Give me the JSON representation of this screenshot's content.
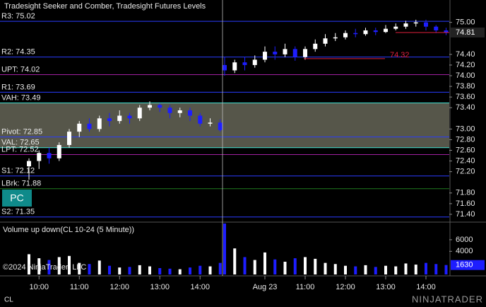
{
  "chart_data": {
    "type": "candlestick",
    "title": "Tradesight Seeker and Comber, Tradesight Futures Levels",
    "instrument": "CL",
    "copyright": "©2024 NinjaTrader, LLC",
    "logo": "NINJATRADER",
    "button": "PC",
    "up_color": "#ffffff",
    "down_color": "#1e1eff",
    "ylim": [
      71.28,
      75.42
    ],
    "yticks": [
      {
        "value": 75.0,
        "label": "75.00"
      },
      {
        "value": 74.4,
        "label": "74.40"
      },
      {
        "value": 74.2,
        "label": "74.20"
      },
      {
        "value": 74.0,
        "label": "74.00"
      },
      {
        "value": 73.8,
        "label": "73.80"
      },
      {
        "value": 73.6,
        "label": "73.60"
      },
      {
        "value": 73.4,
        "label": "73.40"
      },
      {
        "value": 73.0,
        "label": "73.00"
      },
      {
        "value": 72.8,
        "label": "72.80"
      },
      {
        "value": 72.6,
        "label": "72.60"
      },
      {
        "value": 72.4,
        "label": "72.40"
      },
      {
        "value": 72.2,
        "label": "72.20"
      },
      {
        "value": 71.8,
        "label": "71.80"
      },
      {
        "value": 71.6,
        "label": "71.60"
      },
      {
        "value": 71.4,
        "label": "71.40"
      }
    ],
    "xticks": [
      {
        "value": 1,
        "label": "10:00"
      },
      {
        "value": 5,
        "label": "11:00"
      },
      {
        "value": 9,
        "label": "12:00"
      },
      {
        "value": 13,
        "label": "13:00"
      },
      {
        "value": 17,
        "label": "14:00"
      },
      {
        "value": 24,
        "label": "Aug 23"
      },
      {
        "value": 28,
        "label": "11:00"
      },
      {
        "value": 32,
        "label": "12:00"
      },
      {
        "value": 36,
        "label": "13:00"
      },
      {
        "value": 40,
        "label": "14:00"
      }
    ],
    "open": [
      72.3,
      72.4,
      72.55,
      72.45,
      72.7,
      72.95,
      73.1,
      73.0,
      73.2,
      73.15,
      73.25,
      73.2,
      73.4,
      73.45,
      73.4,
      73.3,
      73.35,
      73.25,
      73.1,
      73.12,
      74.2,
      74.1,
      74.25,
      74.2,
      74.3,
      74.45,
      74.4,
      74.5,
      74.35,
      74.5,
      74.6,
      74.7,
      74.72,
      74.8,
      74.78,
      74.85,
      74.82,
      74.88,
      74.92,
      74.98,
      75.0,
      74.92,
      74.85
    ],
    "high": [
      72.45,
      72.6,
      72.65,
      72.75,
      73.0,
      73.15,
      73.2,
      73.25,
      73.3,
      73.35,
      73.3,
      73.45,
      73.52,
      73.48,
      73.45,
      73.4,
      73.4,
      73.3,
      73.2,
      73.18,
      74.35,
      74.3,
      74.35,
      74.38,
      74.55,
      74.55,
      74.6,
      74.55,
      74.55,
      74.68,
      74.78,
      74.8,
      74.85,
      74.88,
      74.9,
      74.9,
      74.95,
      74.98,
      75.03,
      75.05,
      75.05,
      74.95,
      74.9
    ],
    "low": [
      72.05,
      72.25,
      72.35,
      72.4,
      72.65,
      72.85,
      72.95,
      72.95,
      73.05,
      73.1,
      73.1,
      73.15,
      73.35,
      73.32,
      73.2,
      73.22,
      73.15,
      73.05,
      73.05,
      72.95,
      74.0,
      74.05,
      74.1,
      74.15,
      74.25,
      74.3,
      74.35,
      74.28,
      74.3,
      74.45,
      74.55,
      74.65,
      74.68,
      74.72,
      74.75,
      74.76,
      74.8,
      74.85,
      74.88,
      74.92,
      74.85,
      74.8,
      74.76
    ],
    "close": [
      72.4,
      72.55,
      72.45,
      72.7,
      72.95,
      73.1,
      73.0,
      73.2,
      73.15,
      73.25,
      73.2,
      73.4,
      73.45,
      73.4,
      73.3,
      73.35,
      73.25,
      73.1,
      73.12,
      72.98,
      74.1,
      74.25,
      74.2,
      74.3,
      74.45,
      74.4,
      74.5,
      74.35,
      74.5,
      74.6,
      74.7,
      74.72,
      74.8,
      74.78,
      74.85,
      74.82,
      74.88,
      74.92,
      74.98,
      75.0,
      74.92,
      74.85,
      74.81
    ],
    "last_price": 74.81,
    "levels": [
      {
        "label": "R3: 75.02",
        "value": 75.02,
        "color": "#2a3cff"
      },
      {
        "label": "R2: 74.35",
        "value": 74.35,
        "color": "#2a3cff"
      },
      {
        "label": "UPT: 74.02",
        "value": 74.02,
        "color": "#a020a0"
      },
      {
        "label": "R1: 73.69",
        "value": 73.69,
        "color": "#2a3cff"
      },
      {
        "label": "VAH: 73.49",
        "value": 73.49,
        "color": "#40e0d0"
      },
      {
        "label": "Pivot: 72.85",
        "value": 72.85,
        "color": "#2a3cff"
      },
      {
        "label": "VAL: 72.65",
        "value": 72.65,
        "color": "#40e0d0"
      },
      {
        "label": "LPT: 72.52",
        "value": 72.52,
        "color": "#a020a0"
      },
      {
        "label": "S1: 72.12",
        "value": 72.12,
        "color": "#2a3cff"
      },
      {
        "label": "LBrk: 71.88",
        "value": 71.88,
        "color": "#207a20"
      },
      {
        "label": "S2: 71.35",
        "value": 71.35,
        "color": "#2a3cff"
      }
    ],
    "value_area_color": "#56564a",
    "annotation": {
      "label": "74.32",
      "value": 74.32,
      "color": "#e0203c"
    },
    "volume": {
      "title": "Volume up down(CL 10-24 (5 Minute))",
      "ylim": [
        0,
        8800
      ],
      "yticks": [
        4000,
        6000
      ],
      "values": [
        3500,
        2800,
        2500,
        3000,
        3200,
        2000,
        1800,
        2400,
        1500,
        1200,
        1300,
        1600,
        1400,
        1100,
        1000,
        900,
        1200,
        1500,
        1400,
        2000,
        8800,
        4500,
        3000,
        2500,
        3800,
        2600,
        2200,
        2800,
        3000,
        2700,
        2000,
        1800,
        1500,
        1400,
        1600,
        1300,
        1500,
        1400,
        1900,
        1700,
        2000,
        1800,
        1630
      ],
      "last": 1630
    }
  }
}
